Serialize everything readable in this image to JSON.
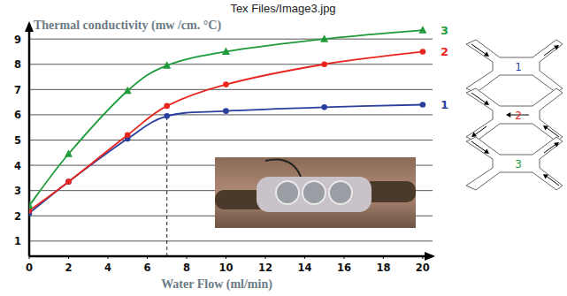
{
  "header": "Tex Files/Image3.jpg",
  "chart_data": {
    "type": "line",
    "title": "Thermal conductivity (mw /cm. °C)",
    "x_label": "Water Flow (ml/min)",
    "x": [
      0,
      2,
      5,
      7,
      10,
      15,
      20
    ],
    "series": [
      {
        "name": "1",
        "color": "#2a3f9d",
        "marker": "circle",
        "values": [
          2.1,
          3.35,
          5.05,
          5.95,
          6.15,
          6.3,
          6.4
        ]
      },
      {
        "name": "2",
        "color": "#e8261f",
        "marker": "circle",
        "values": [
          2.2,
          3.35,
          5.2,
          6.35,
          7.2,
          8.0,
          8.5
        ]
      },
      {
        "name": "3",
        "color": "#1e9a3a",
        "marker": "triangle",
        "values": [
          2.4,
          4.45,
          6.95,
          7.95,
          8.5,
          9.0,
          9.35
        ]
      }
    ],
    "xlim": [
      0,
      20.5
    ],
    "ylim": [
      0.4,
      9.6
    ],
    "xticks": [
      0,
      2,
      4,
      6,
      8,
      10,
      12,
      14,
      16,
      18,
      20
    ],
    "yticks": [
      1,
      2,
      3,
      4,
      5,
      6,
      7,
      8,
      9
    ],
    "grid": true,
    "legend": "right",
    "reference_lines": [
      {
        "x": 7
      }
    ]
  }
}
